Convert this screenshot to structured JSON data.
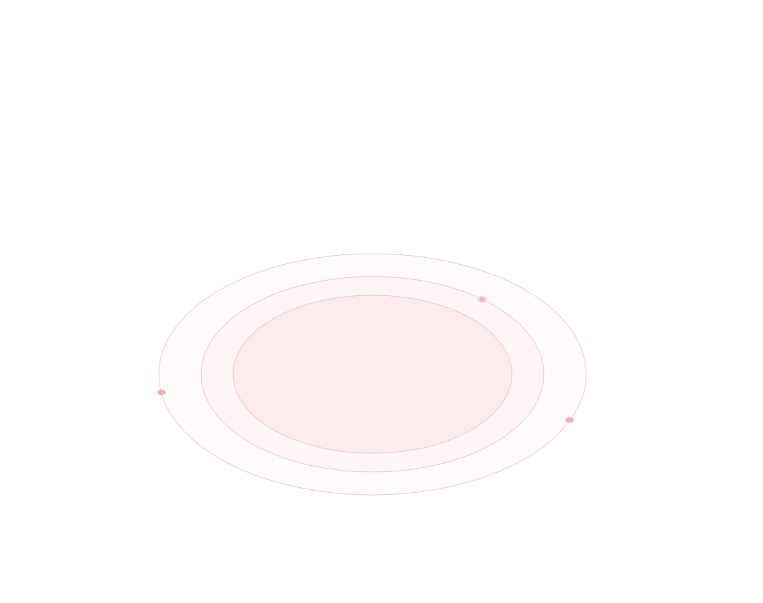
{
  "colors": {
    "background": "#ffffff",
    "ring_stroke": "#f3c4cc",
    "outer_fill": "#fffbfb",
    "middle_fill": "#fef5f6",
    "inner_fill": "#fdeced",
    "dot_fill": "#eeb0b8",
    "dot_light_fill": "#f7d3d8"
  },
  "decorations": {
    "rings": [
      "outer-ring",
      "middle-ring",
      "inner-ring"
    ],
    "dots": [
      "orbit-dot-left",
      "orbit-dot-right",
      "orbit-dot-top"
    ]
  }
}
